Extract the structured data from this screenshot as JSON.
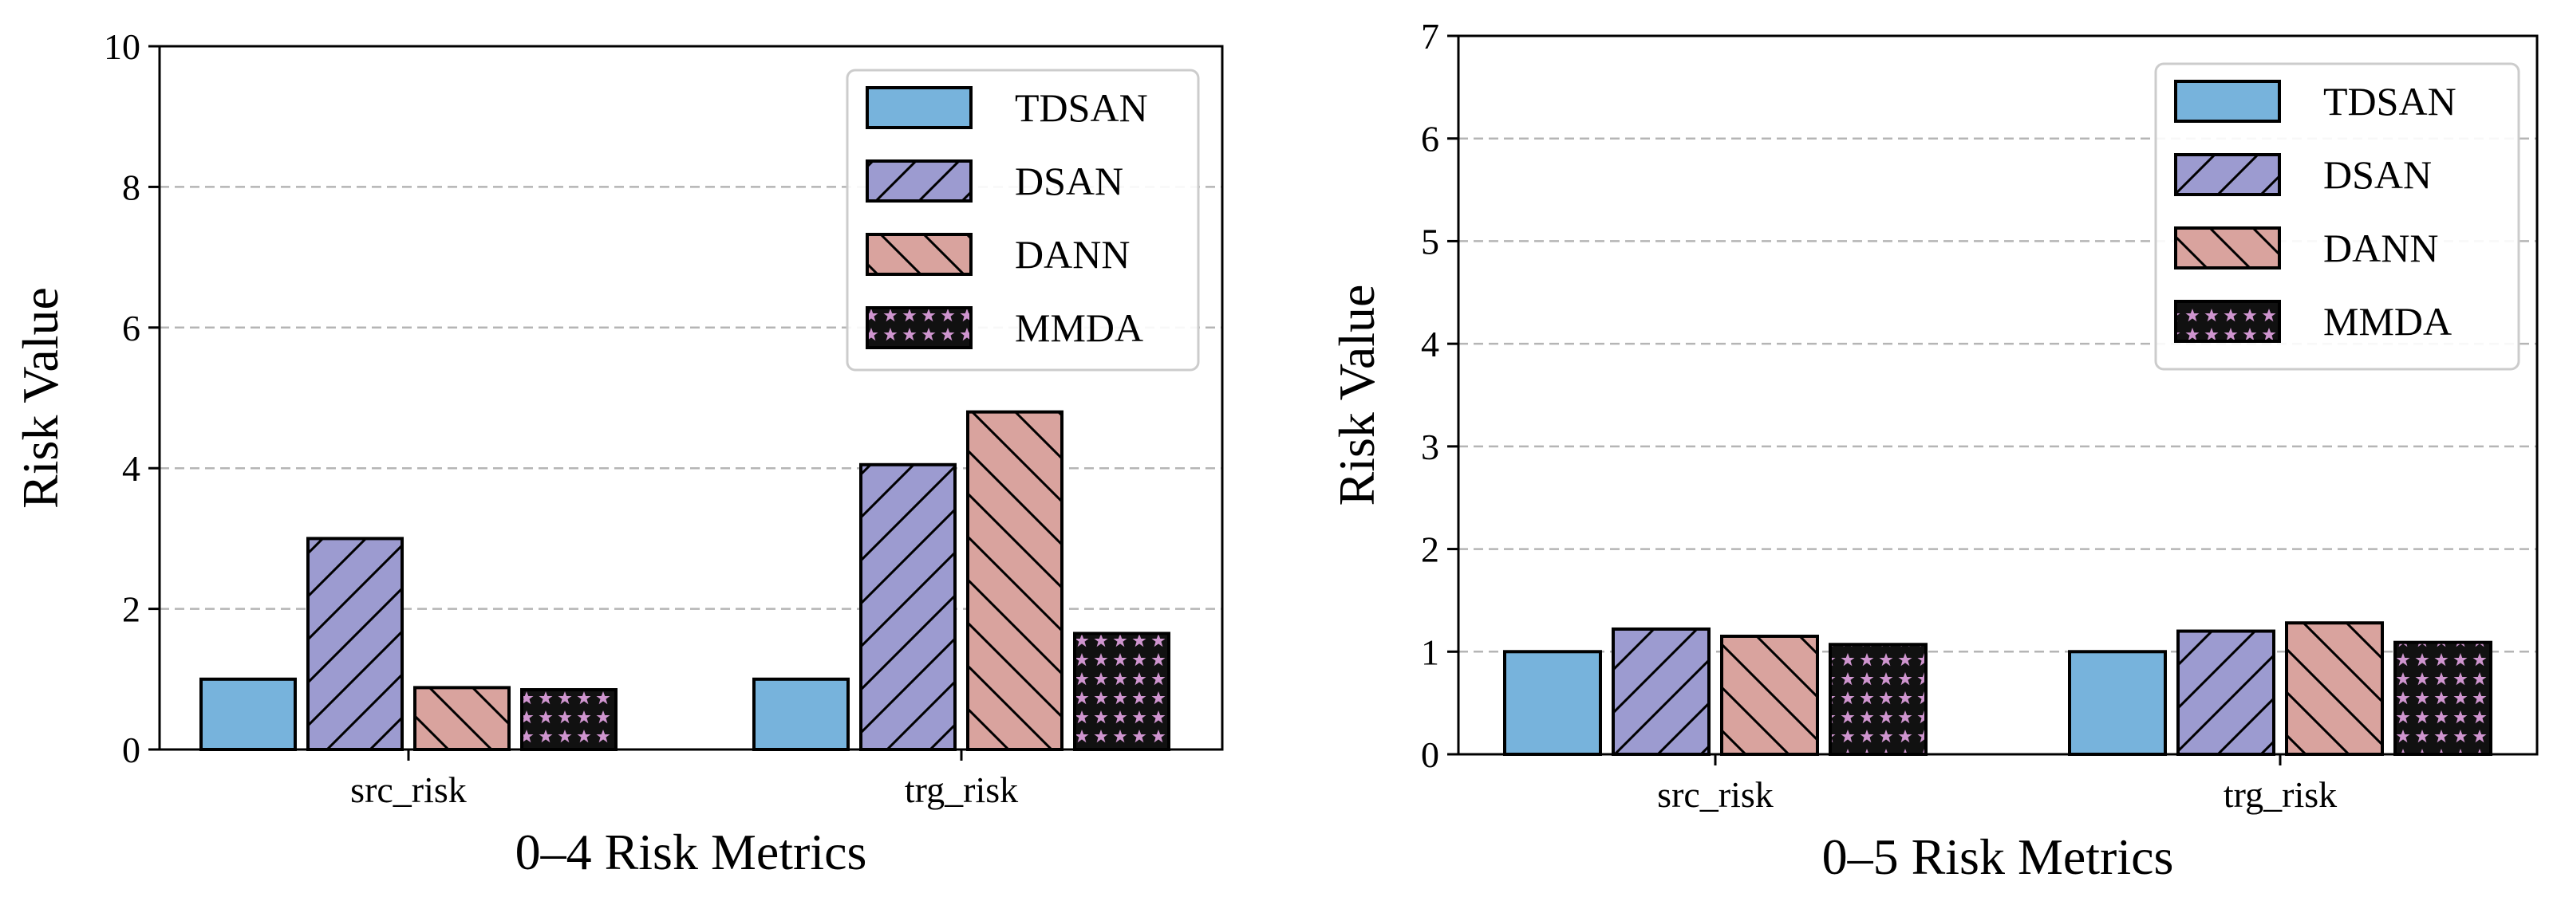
{
  "colors": {
    "TDSAN": "#77b3dc",
    "DSAN": "#9c9bd0",
    "DANN": "#d9a39e",
    "MMDA": "#cf95cf",
    "grid": "#b5b5b5"
  },
  "chart_data": [
    {
      "type": "bar",
      "xlabel": "0–4 Risk Metrics",
      "ylabel": "Risk Value",
      "categories": [
        "src_risk",
        "trg_risk"
      ],
      "ylim": [
        0,
        10
      ],
      "yticks": [
        0,
        2,
        4,
        6,
        8,
        10
      ],
      "grid": true,
      "legend_position": "top-right",
      "series": [
        {
          "name": "TDSAN",
          "pattern": "solid",
          "values": [
            1.0,
            1.0
          ]
        },
        {
          "name": "DSAN",
          "pattern": "diag-forward",
          "values": [
            3.0,
            4.05
          ]
        },
        {
          "name": "DANN",
          "pattern": "diag-back",
          "values": [
            0.88,
            4.8
          ]
        },
        {
          "name": "MMDA",
          "pattern": "stars",
          "values": [
            0.85,
            1.65
          ]
        }
      ]
    },
    {
      "type": "bar",
      "xlabel": "0–5 Risk Metrics",
      "ylabel": "Risk Value",
      "categories": [
        "src_risk",
        "trg_risk"
      ],
      "ylim": [
        0,
        7
      ],
      "yticks": [
        0,
        1,
        2,
        3,
        4,
        5,
        6,
        7
      ],
      "grid": true,
      "legend_position": "top-right",
      "series": [
        {
          "name": "TDSAN",
          "pattern": "solid",
          "values": [
            1.0,
            1.0
          ]
        },
        {
          "name": "DSAN",
          "pattern": "diag-forward",
          "values": [
            1.22,
            1.2
          ]
        },
        {
          "name": "DANN",
          "pattern": "diag-back",
          "values": [
            1.15,
            1.28
          ]
        },
        {
          "name": "MMDA",
          "pattern": "stars",
          "values": [
            1.07,
            1.09
          ]
        }
      ]
    }
  ]
}
